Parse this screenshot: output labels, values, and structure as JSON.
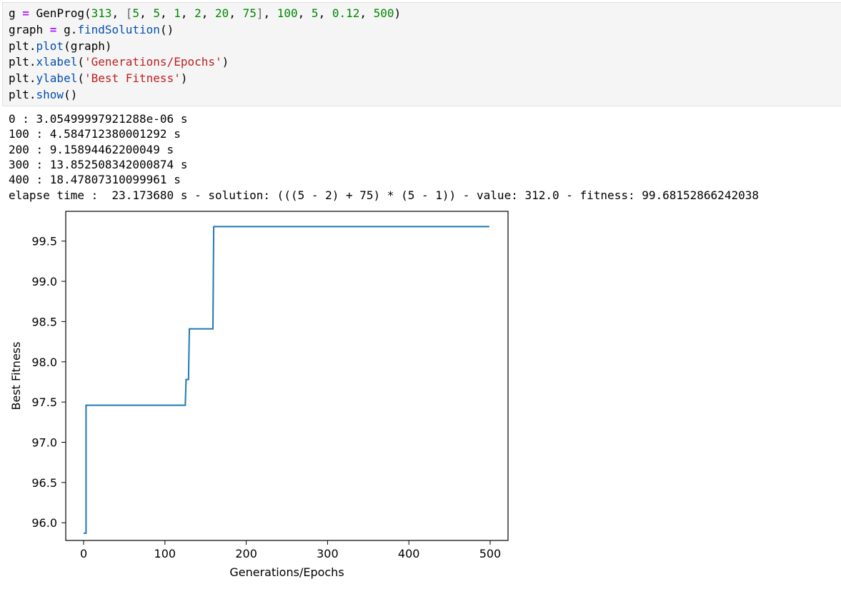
{
  "code_cell": {
    "lines": [
      [
        {
          "t": "g ",
          "c": ""
        },
        {
          "t": "=",
          "c": "op"
        },
        {
          "t": " GenProg(",
          "c": ""
        },
        {
          "t": "313",
          "c": "num"
        },
        {
          "t": ", ",
          "c": ""
        },
        {
          "t": "[",
          "c": "brk"
        },
        {
          "t": "5",
          "c": "num"
        },
        {
          "t": ", ",
          "c": ""
        },
        {
          "t": "5",
          "c": "num"
        },
        {
          "t": ", ",
          "c": ""
        },
        {
          "t": "1",
          "c": "num"
        },
        {
          "t": ", ",
          "c": ""
        },
        {
          "t": "2",
          "c": "num"
        },
        {
          "t": ", ",
          "c": ""
        },
        {
          "t": "20",
          "c": "num"
        },
        {
          "t": ", ",
          "c": ""
        },
        {
          "t": "75",
          "c": "num"
        },
        {
          "t": "]",
          "c": "brk"
        },
        {
          "t": ", ",
          "c": ""
        },
        {
          "t": "100",
          "c": "num"
        },
        {
          "t": ", ",
          "c": ""
        },
        {
          "t": "5",
          "c": "num"
        },
        {
          "t": ", ",
          "c": ""
        },
        {
          "t": "0.12",
          "c": "num"
        },
        {
          "t": ", ",
          "c": ""
        },
        {
          "t": "500",
          "c": "num"
        },
        {
          "t": ")",
          "c": ""
        }
      ],
      [
        {
          "t": "graph ",
          "c": ""
        },
        {
          "t": "=",
          "c": "op"
        },
        {
          "t": " g.",
          "c": ""
        },
        {
          "t": "findSolution",
          "c": "fn"
        },
        {
          "t": "()",
          "c": ""
        }
      ],
      [
        {
          "t": "plt.",
          "c": ""
        },
        {
          "t": "plot",
          "c": "fn"
        },
        {
          "t": "(graph)",
          "c": ""
        }
      ],
      [
        {
          "t": "plt.",
          "c": ""
        },
        {
          "t": "xlabel",
          "c": "fn"
        },
        {
          "t": "(",
          "c": ""
        },
        {
          "t": "'Generations/Epochs'",
          "c": "str"
        },
        {
          "t": ")",
          "c": ""
        }
      ],
      [
        {
          "t": "plt.",
          "c": ""
        },
        {
          "t": "ylabel",
          "c": "fn"
        },
        {
          "t": "(",
          "c": ""
        },
        {
          "t": "'Best Fitness'",
          "c": "str"
        },
        {
          "t": ")",
          "c": ""
        }
      ],
      [
        {
          "t": "plt.",
          "c": ""
        },
        {
          "t": "show",
          "c": "fn"
        },
        {
          "t": "()",
          "c": ""
        }
      ]
    ]
  },
  "output": {
    "lines": [
      "0 : 3.05499997921288e-06 s",
      "100 : 4.584712380001292 s",
      "200 : 9.15894462200049 s",
      "300 : 13.852508342000874 s",
      "400 : 18.47807310099961 s",
      "elapse time :  23.173680 s - solution: (((5 - 2) + 75) * (5 - 1)) - value: 312.0 - fitness: 99.68152866242038"
    ]
  },
  "chart_data": {
    "type": "line",
    "xlabel": "Generations/Epochs",
    "ylabel": "Best Fitness",
    "xlim": [
      -22,
      522
    ],
    "ylim": [
      95.78,
      99.87
    ],
    "xticks": [
      0,
      100,
      200,
      300,
      400,
      500
    ],
    "yticks": [
      96.0,
      96.5,
      97.0,
      97.5,
      98.0,
      98.5,
      99.0,
      99.5
    ],
    "line_color": "#1f77b4",
    "series": [
      {
        "x": [
          0,
          3,
          3,
          125,
          126,
          129,
          130,
          131,
          159,
          160,
          499
        ],
        "y": [
          95.87,
          95.87,
          97.46,
          97.46,
          97.78,
          97.78,
          98.41,
          98.41,
          98.41,
          99.68,
          99.68
        ]
      }
    ]
  }
}
